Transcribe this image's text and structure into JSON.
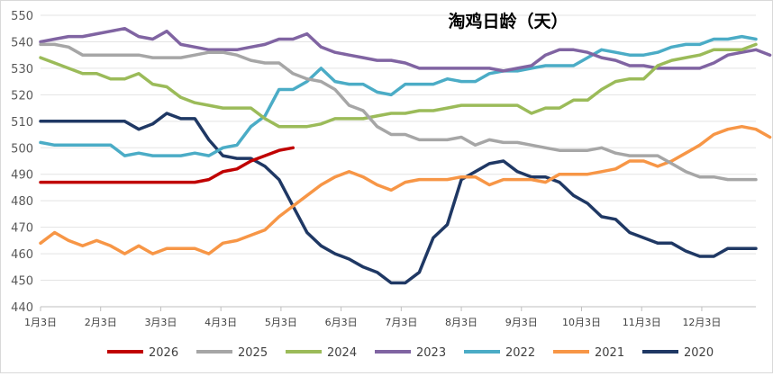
{
  "chart_data": {
    "type": "line",
    "title": "淘鸡日龄（天）",
    "ylim": [
      440,
      550
    ],
    "yticks": [
      440,
      450,
      460,
      470,
      480,
      490,
      500,
      510,
      520,
      530,
      540,
      550
    ],
    "xlabels": [
      "1月3日",
      "2月3日",
      "3月3日",
      "4月3日",
      "5月3日",
      "6月3日",
      "7月3日",
      "8月3日",
      "9月3日",
      "10月3日",
      "11月3日",
      "12月3日"
    ],
    "grid": "horizontal",
    "legend_position": "bottom",
    "series": [
      {
        "name": "2026",
        "color": "#C00000",
        "values": [
          487,
          487,
          487,
          487,
          487,
          487,
          487,
          487,
          487,
          487,
          487,
          487,
          488,
          491,
          492,
          495,
          497,
          499,
          500
        ]
      },
      {
        "name": "2025",
        "color": "#A6A6A6",
        "values": [
          539,
          539,
          538,
          535,
          535,
          535,
          535,
          535,
          534,
          534,
          534,
          535,
          536,
          536,
          535,
          533,
          532,
          532,
          528,
          526,
          525,
          522,
          516,
          514,
          508,
          505,
          505,
          503,
          503,
          503,
          504,
          501,
          503,
          502,
          502,
          501,
          500,
          499,
          499,
          499,
          500,
          498,
          497,
          497,
          497,
          494,
          491,
          489,
          489,
          488,
          488,
          488
        ]
      },
      {
        "name": "2024",
        "color": "#9BBB59",
        "values": [
          534,
          532,
          530,
          528,
          528,
          526,
          526,
          528,
          524,
          523,
          519,
          517,
          516,
          515,
          515,
          515,
          511,
          508,
          508,
          508,
          509,
          511,
          511,
          511,
          512,
          513,
          513,
          514,
          514,
          515,
          516,
          516,
          516,
          516,
          516,
          513,
          515,
          515,
          518,
          518,
          522,
          525,
          526,
          526,
          531,
          533,
          534,
          535,
          537,
          537,
          537,
          539
        ]
      },
      {
        "name": "2023",
        "color": "#8064A2",
        "values": [
          540,
          541,
          542,
          542,
          543,
          544,
          545,
          542,
          541,
          544,
          539,
          538,
          537,
          537,
          537,
          538,
          539,
          541,
          541,
          543,
          538,
          536,
          535,
          534,
          533,
          533,
          532,
          530,
          530,
          530,
          530,
          530,
          530,
          529,
          530,
          531,
          535,
          537,
          537,
          536,
          534,
          533,
          531,
          531,
          530,
          530,
          530,
          530,
          532,
          535,
          536,
          537,
          535
        ]
      },
      {
        "name": "2022",
        "color": "#4BACC6",
        "values": [
          502,
          501,
          501,
          501,
          501,
          501,
          497,
          498,
          497,
          497,
          497,
          498,
          497,
          500,
          501,
          508,
          512,
          522,
          522,
          525,
          530,
          525,
          524,
          524,
          521,
          520,
          524,
          524,
          524,
          526,
          525,
          525,
          528,
          529,
          529,
          530,
          531,
          531,
          531,
          534,
          537,
          536,
          535,
          535,
          536,
          538,
          539,
          539,
          541,
          541,
          542,
          541
        ]
      },
      {
        "name": "2021",
        "color": "#F79646",
        "values": [
          464,
          468,
          465,
          463,
          465,
          463,
          460,
          463,
          460,
          462,
          462,
          462,
          460,
          464,
          465,
          467,
          469,
          474,
          478,
          482,
          486,
          489,
          491,
          489,
          486,
          484,
          487,
          488,
          488,
          488,
          489,
          489,
          486,
          488,
          488,
          488,
          487,
          490,
          490,
          490,
          491,
          492,
          495,
          495,
          493,
          495,
          498,
          501,
          505,
          507,
          508,
          507,
          504
        ]
      },
      {
        "name": "2020",
        "color": "#1F3864",
        "values": [
          510,
          510,
          510,
          510,
          510,
          510,
          510,
          507,
          509,
          513,
          511,
          511,
          503,
          497,
          496,
          496,
          493,
          488,
          478,
          468,
          463,
          460,
          458,
          455,
          453,
          449,
          449,
          453,
          466,
          471,
          488,
          491,
          494,
          495,
          491,
          489,
          489,
          487,
          482,
          479,
          474,
          473,
          468,
          466,
          464,
          464,
          461,
          459,
          459,
          462,
          462,
          462
        ]
      }
    ]
  }
}
